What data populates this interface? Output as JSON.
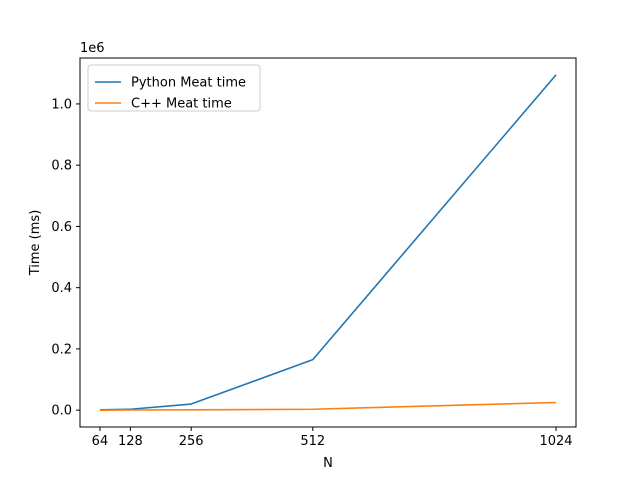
{
  "chart_data": {
    "type": "line",
    "xlabel": "N",
    "ylabel": "Time (ms)",
    "y_multiplier_label": "1e6",
    "x_ticks": [
      64,
      128,
      256,
      512,
      1024
    ],
    "y_ticks": [
      0.0,
      0.2,
      0.4,
      0.6,
      0.8,
      1.0
    ],
    "y_tick_labels": [
      "0.0",
      "0.2",
      "0.4",
      "0.6",
      "0.8",
      "1.0"
    ],
    "x": [
      64,
      128,
      256,
      512,
      1024
    ],
    "xlim": [
      22,
      1066
    ],
    "ylim": [
      -0.055,
      1.15
    ],
    "grid": false,
    "legend_position": "upper-left",
    "series": [
      {
        "name": "Python Meat time",
        "color": "#1f77b4",
        "values": [
          0.001,
          0.003,
          0.02,
          0.165,
          1.095
        ]
      },
      {
        "name": "C++ Meat time",
        "color": "#ff7f0e",
        "values": [
          0.0,
          0.0005,
          0.001,
          0.003,
          0.025
        ]
      }
    ]
  }
}
